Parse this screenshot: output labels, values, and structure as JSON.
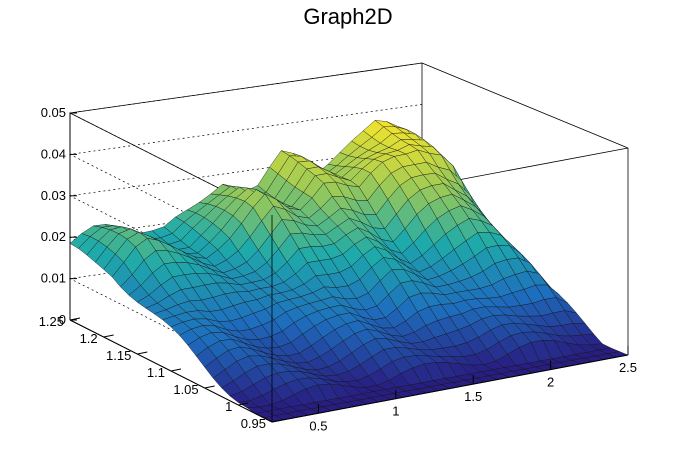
{
  "chart_data": {
    "type": "surface3d",
    "title": "Graph2D",
    "xlabel": "",
    "ylabel": "",
    "zlabel": "",
    "xlim": [
      0.2,
      2.5
    ],
    "ylim": [
      0.95,
      1.25
    ],
    "zlim": [
      0,
      0.05
    ],
    "x_ticks": [
      "0.5",
      "1",
      "1.5",
      "2",
      "2.5"
    ],
    "y_ticks": [
      "0.95",
      "1",
      "1.05",
      "1.1",
      "1.15",
      "1.2",
      "1.25"
    ],
    "z_ticks": [
      "0",
      "0.01",
      "0.02",
      "0.03",
      "0.04",
      "0.05"
    ],
    "grid": true,
    "colormap": "viridis-like",
    "ridge_profile": {
      "x": [
        0.2,
        0.4,
        0.6,
        0.8,
        1.0,
        1.2,
        1.4,
        1.6,
        1.8,
        2.0,
        2.2,
        2.4,
        2.5
      ],
      "z_back": [
        0.017,
        0.023,
        0.02,
        0.018,
        0.022,
        0.029,
        0.025,
        0.033,
        0.027,
        0.034,
        0.037,
        0.033,
        0.02
      ],
      "z_front": [
        0.0,
        0.0,
        0.0,
        0.0,
        0.0,
        0.0,
        0.0,
        0.0,
        0.0,
        0.0,
        0.0,
        0.0,
        0.0
      ]
    }
  }
}
